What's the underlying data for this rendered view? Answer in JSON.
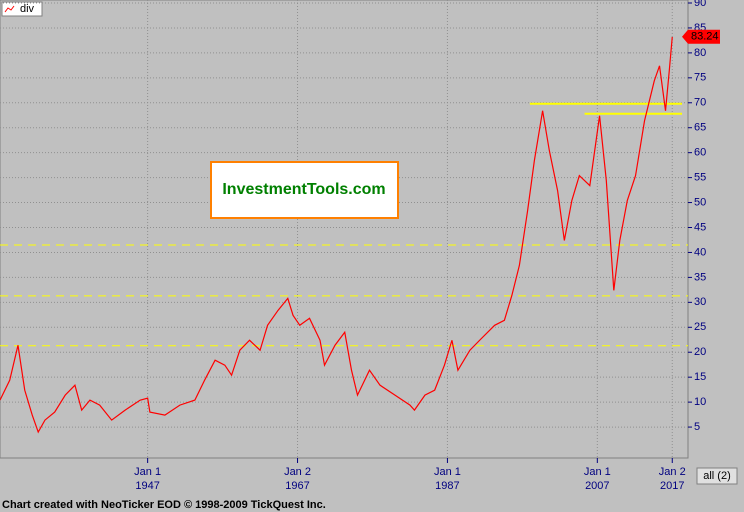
{
  "chart_data": {
    "type": "line",
    "series": [
      {
        "name": "div",
        "color": "#ff0000",
        "x": [
          1927.3,
          1928.6,
          1929.7,
          1930.6,
          1931.6,
          1932.4,
          1933.3,
          1934.6,
          1936,
          1937.3,
          1938.2,
          1939.3,
          1940.6,
          1942.2,
          1944,
          1946,
          1947,
          1947.3,
          1949.3,
          1951.3,
          1953.3,
          1954.6,
          1956,
          1957.3,
          1958.2,
          1959.3,
          1960.6,
          1962,
          1963,
          1964.4,
          1965.7,
          1966.4,
          1967.3,
          1968.6,
          1970,
          1970.6,
          1972,
          1973.3,
          1974.2,
          1975,
          1976.6,
          1978,
          1980,
          1982,
          1982.6,
          1984,
          1985.3,
          1986.6,
          1987.6,
          1988.4,
          1990,
          1991.3,
          1993.3,
          1994.6,
          1995.6,
          1996.6,
          1997.7,
          1998.6,
          1999.7,
          2000.6,
          2001.7,
          2002.6,
          2003.6,
          2004.6,
          2006,
          2007.3,
          2008.2,
          2009.2,
          2010,
          2011,
          2012.1,
          2013.3,
          2014.6,
          2015.3,
          2016.1,
          2016.6,
          2017
        ],
        "values": [
          10.4,
          14.4,
          21.4,
          12.4,
          7.4,
          4,
          6.4,
          8,
          11.4,
          13.4,
          8.4,
          10.4,
          9.4,
          6.4,
          8.4,
          10.4,
          10.8,
          8,
          7.4,
          9.4,
          10.4,
          14.4,
          18.4,
          17.4,
          15.4,
          20.4,
          22.4,
          20.4,
          25.4,
          28.4,
          30.8,
          27.4,
          25.4,
          26.8,
          22.4,
          17.4,
          21.4,
          24,
          16.4,
          11.4,
          16.4,
          13.4,
          11.4,
          9.4,
          8.4,
          11.4,
          12.4,
          17.4,
          22.4,
          16.4,
          20.4,
          22.4,
          25.4,
          26.4,
          31.4,
          37.4,
          48.4,
          58.4,
          68.4,
          60.4,
          52.4,
          42.4,
          50.4,
          55.4,
          53.4,
          67.4,
          54.4,
          32.4,
          42.4,
          50.4,
          55.4,
          66.4,
          74.4,
          77.4,
          68.4,
          76.4,
          83.2
        ]
      }
    ],
    "xlim": [
      1927.3,
      2019.1
    ],
    "xticks": [
      {
        "value": 1947,
        "label": "Jan 1"
      },
      {
        "value": 1967,
        "label": "Jan 2"
      },
      {
        "value": 1987,
        "label": "Jan 1"
      },
      {
        "value": 2007,
        "label": "Jan 1"
      },
      {
        "value": 2017,
        "label": "Jan 2"
      }
    ],
    "ylim": [
      -1.2,
      90.6
    ],
    "yticks": [
      5,
      10,
      15,
      20,
      25,
      30,
      35,
      40,
      45,
      50,
      55,
      60,
      65,
      70,
      75,
      80,
      85,
      90
    ],
    "grid": true,
    "levels": [
      {
        "value": 21.3
      },
      {
        "value": 31.3
      },
      {
        "value": 41.5
      },
      {
        "value": 69.8,
        "from": 1998,
        "to": 2018.3
      },
      {
        "value": 67.8,
        "from": 2005.3,
        "to": 2018.3
      }
    ],
    "last_value": 83.24,
    "watermark": "InvestmentTools.com",
    "button": "all (2)"
  },
  "footer": "Chart created with NeoTicker EOD © 1998-2009 TickQuest Inc."
}
